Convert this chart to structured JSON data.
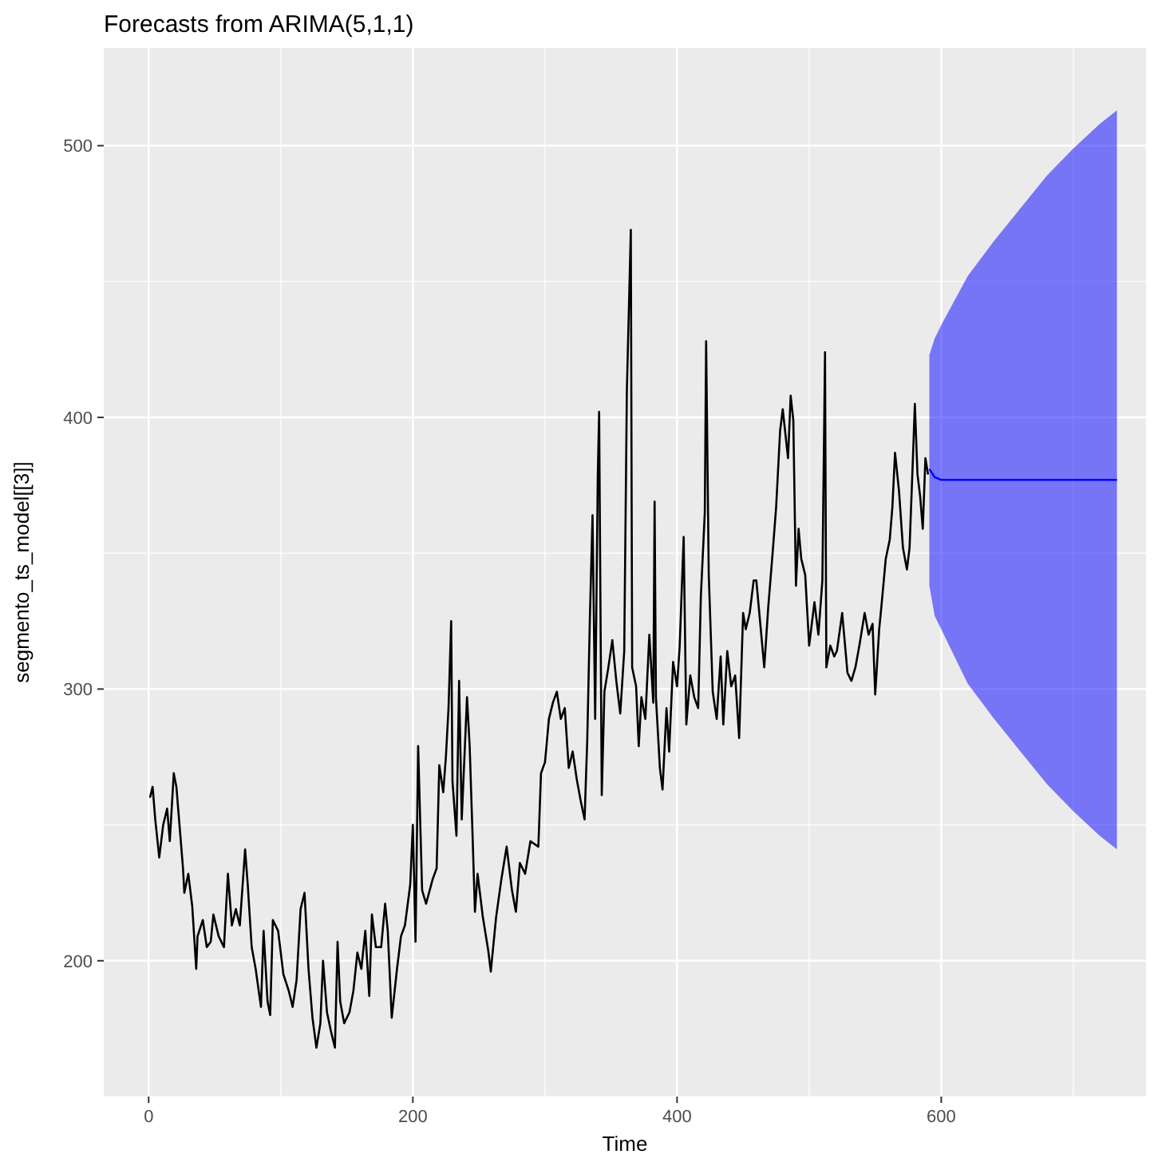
{
  "chart_data": {
    "type": "line",
    "title": "Forecasts from ARIMA(5,1,1)",
    "xlabel": "Time",
    "ylabel": "segmento_ts_model[[3]]",
    "xlim": [
      -34,
      755
    ],
    "xticks": [
      0,
      200,
      400,
      600
    ],
    "ylim": [
      150,
      536
    ],
    "yticks": [
      200,
      300,
      400,
      500
    ],
    "grid": true,
    "series": [
      {
        "color": "#000000",
        "x": [
          1,
          3,
          5,
          8,
          11,
          14,
          16,
          19,
          21,
          24,
          26,
          27,
          30,
          33,
          36,
          37,
          41,
          44,
          47,
          49,
          53,
          57,
          60,
          63,
          66,
          69,
          73,
          75,
          78,
          81,
          85,
          87,
          90,
          92,
          94,
          98,
          102,
          106,
          109,
          112,
          115,
          118,
          121,
          124,
          127,
          130,
          132,
          135,
          138,
          141,
          143,
          145,
          148,
          152,
          155,
          158,
          161,
          164,
          167,
          169,
          172,
          176,
          179,
          181,
          184,
          188,
          191,
          194,
          198,
          200,
          202,
          204,
          207,
          210,
          215,
          218,
          220,
          223,
          225,
          227,
          229,
          230,
          233,
          235,
          237,
          241,
          243,
          245,
          247,
          249,
          253,
          257,
          259,
          263,
          267,
          271,
          275,
          278,
          281,
          285,
          289,
          295,
          297,
          300,
          303,
          306,
          309,
          312,
          315,
          318,
          321,
          324,
          327,
          330,
          332,
          334,
          336,
          338,
          340,
          341,
          343,
          345,
          348,
          351,
          354,
          357,
          360,
          362,
          365,
          366,
          369,
          371,
          373,
          376,
          379,
          382,
          383,
          384,
          387,
          389,
          392,
          394,
          397,
          400,
          402,
          405,
          407,
          410,
          413,
          416,
          418,
          421,
          422,
          424,
          427,
          430,
          433,
          435,
          438,
          441,
          444,
          447,
          450,
          452,
          455,
          458,
          460,
          463,
          466,
          469,
          472,
          475,
          478,
          480,
          484,
          486,
          488,
          490,
          492,
          494,
          497,
          500,
          504,
          507,
          510,
          512,
          513,
          516,
          519,
          521,
          525,
          529,
          532,
          535,
          538,
          542,
          545,
          548,
          550,
          553,
          555,
          558,
          561,
          563,
          565,
          568,
          571,
          574,
          576,
          579,
          580,
          582,
          584,
          586,
          588,
          590
        ],
        "values": [
          260,
          264,
          252,
          238,
          250,
          256,
          244,
          269,
          264,
          246,
          234,
          225,
          232,
          220,
          197,
          209,
          215,
          205,
          207,
          217,
          209,
          205,
          232,
          213,
          219,
          213,
          241,
          228,
          205,
          197,
          183,
          211,
          185,
          180,
          215,
          211,
          195,
          189,
          183,
          193,
          219,
          225,
          197,
          179,
          168,
          177,
          200,
          181,
          174,
          168,
          207,
          185,
          177,
          181,
          189,
          203,
          197,
          211,
          187,
          217,
          205,
          205,
          221,
          211,
          179,
          197,
          209,
          213,
          228,
          250,
          207,
          279,
          226,
          221,
          230,
          234,
          272,
          262,
          275,
          293,
          325,
          266,
          246,
          303,
          252,
          297,
          279,
          249,
          218,
          232,
          216,
          204,
          196,
          216,
          230,
          242,
          226,
          218,
          236,
          232,
          244,
          242,
          269,
          273,
          289,
          295,
          299,
          289,
          293,
          271,
          277,
          267,
          259,
          252,
          281,
          326,
          364,
          289,
          379,
          402,
          261,
          299,
          308,
          318,
          303,
          291,
          314,
          410,
          469,
          308,
          301,
          279,
          297,
          289,
          320,
          295,
          369,
          297,
          271,
          263,
          293,
          277,
          310,
          301,
          316,
          356,
          287,
          305,
          297,
          293,
          334,
          365,
          428,
          342,
          299,
          289,
          312,
          287,
          314,
          301,
          305,
          282,
          328,
          322,
          328,
          340,
          340,
          324,
          308,
          330,
          348,
          367,
          395,
          403,
          385,
          408,
          399,
          338,
          359,
          348,
          342,
          316,
          332,
          320,
          340,
          424,
          308,
          316,
          312,
          314,
          328,
          306,
          303,
          308,
          316,
          328,
          320,
          324,
          298,
          322,
          332,
          348,
          355,
          367,
          387,
          373,
          352,
          344,
          352,
          391,
          405,
          379,
          371,
          359,
          385,
          379
        ]
      },
      {
        "color": "#0000ff",
        "x": [
          591,
          595,
          600,
          620,
          640,
          660,
          680,
          700,
          720,
          733
        ],
        "values": [
          381,
          378,
          377,
          377,
          377,
          377,
          377,
          377,
          377,
          377
        ],
        "lower": [
          338,
          327,
          322,
          302,
          289,
          277,
          265,
          255,
          246,
          241
        ],
        "upper": [
          423,
          429,
          434,
          452,
          465,
          477,
          489,
          499,
          508,
          513
        ]
      }
    ]
  }
}
